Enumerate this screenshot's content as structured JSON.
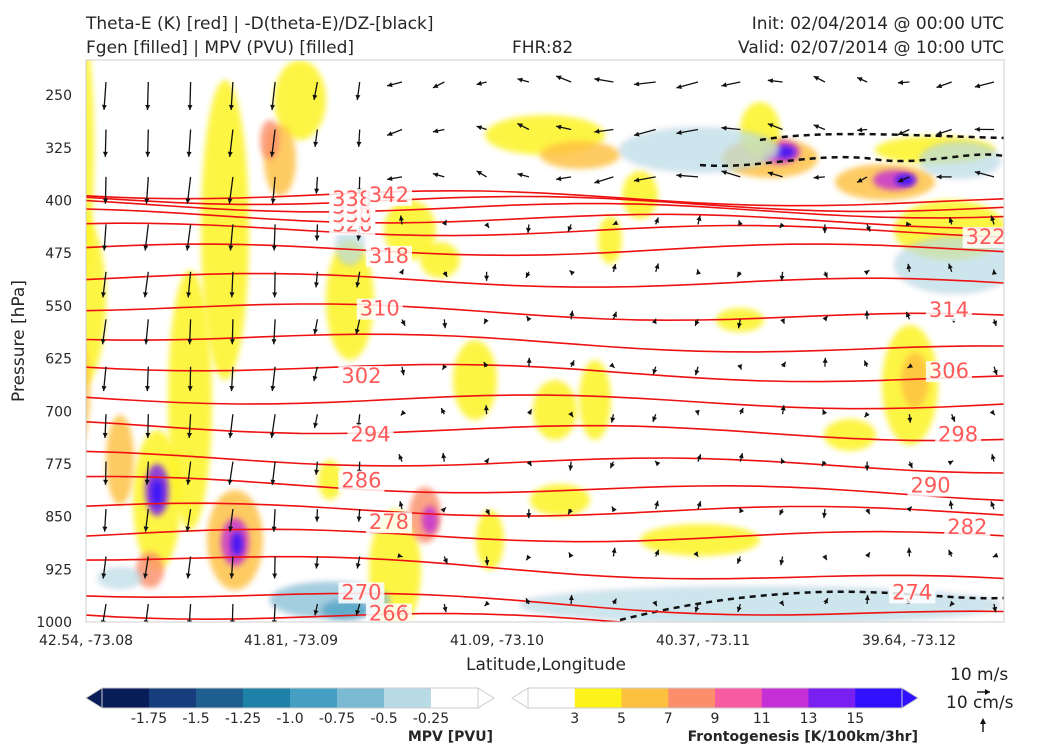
{
  "header": {
    "title_line1": "Theta-E (K) [red] | -D(theta-E)/DZ-[black]",
    "title_line2": "Fgen [filled] | MPV (PVU) [filled]",
    "fhr": "FHR:82",
    "init": "Init: 02/04/2014 @ 00:00 UTC",
    "valid": "Valid: 02/07/2014 @ 10:00 UTC"
  },
  "chart_data": {
    "type": "contour",
    "xlabel": "Latitude,Longitude",
    "ylabel": "Pressure [hPa]",
    "x_ticks": [
      "42.54, -73.08",
      "41.81, -73.09",
      "41.09, -73.10",
      "40.37, -73.11",
      "39.64, -73.12"
    ],
    "y_ticks": [
      250,
      325,
      400,
      475,
      550,
      625,
      700,
      775,
      850,
      925,
      1000
    ],
    "ylim": [
      200,
      1000
    ],
    "y_inverted": true,
    "theta_e_contours": {
      "color": "#ee1111",
      "labels": [
        {
          "value": "266",
          "x_frac": 0.33,
          "p": 995
        },
        {
          "value": "270",
          "x_frac": 0.3,
          "p": 965
        },
        {
          "value": "274",
          "x_frac": 0.9,
          "p": 965
        },
        {
          "value": "278",
          "x_frac": 0.33,
          "p": 865
        },
        {
          "value": "282",
          "x_frac": 0.96,
          "p": 872
        },
        {
          "value": "286",
          "x_frac": 0.3,
          "p": 806
        },
        {
          "value": "290",
          "x_frac": 0.92,
          "p": 813
        },
        {
          "value": "294",
          "x_frac": 0.31,
          "p": 740
        },
        {
          "value": "298",
          "x_frac": 0.95,
          "p": 740
        },
        {
          "value": "302",
          "x_frac": 0.3,
          "p": 657
        },
        {
          "value": "306",
          "x_frac": 0.94,
          "p": 650
        },
        {
          "value": "310",
          "x_frac": 0.32,
          "p": 561
        },
        {
          "value": "314",
          "x_frac": 0.94,
          "p": 563
        },
        {
          "value": "318",
          "x_frac": 0.33,
          "p": 486
        },
        {
          "value": "322",
          "x_frac": 0.98,
          "p": 459
        },
        {
          "value": "326",
          "x_frac": 0.29,
          "p": 441
        },
        {
          "value": "330",
          "x_frac": 0.29,
          "p": 428
        },
        {
          "value": "334",
          "x_frac": 0.29,
          "p": 416
        },
        {
          "value": "338",
          "x_frac": 0.29,
          "p": 405
        },
        {
          "value": "342",
          "x_frac": 0.33,
          "p": 399
        }
      ]
    },
    "mpv_colorbar": {
      "title": "MPV [PVU]",
      "ticks": [
        "-1.75",
        "-1.5",
        "-1.25",
        "-1.0",
        "-0.75",
        "-0.5",
        "-0.25"
      ],
      "colors": [
        "#081d58",
        "#173e7c",
        "#1f5f8f",
        "#1e81a8",
        "#449fc2",
        "#7bbad3",
        "#b8dbe6",
        "#ffffff"
      ]
    },
    "fgen_colorbar": {
      "title": "Frontogenesis [K/100km/3hr]",
      "ticks": [
        "3",
        "5",
        "7",
        "9",
        "11",
        "13",
        "15"
      ],
      "colors": [
        "#ffffff",
        "#fdf31a",
        "#fec03f",
        "#fb8f6b",
        "#f75ba1",
        "#c42fd6",
        "#7a1ff2",
        "#2f10ff"
      ]
    },
    "quiver_key": {
      "label_u": "10 m/s",
      "label_w": "10 cm/s"
    }
  }
}
